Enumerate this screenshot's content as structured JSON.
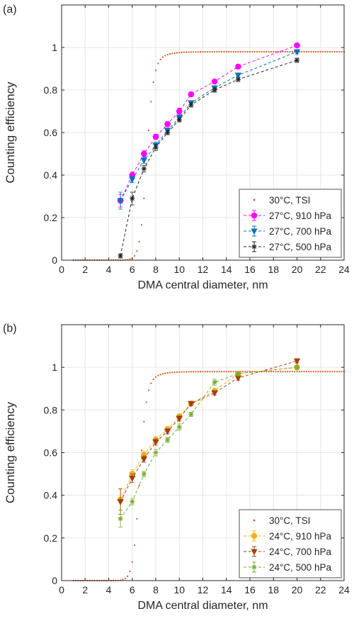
{
  "chart_data": [
    {
      "type": "scatter",
      "panel_label": "(a)",
      "xlabel": "DMA central diameter, nm",
      "ylabel": "Counting efficiency",
      "xlim": [
        0,
        24
      ],
      "ylim": [
        0,
        1.2
      ],
      "xticks": [
        "0",
        "2",
        "4",
        "6",
        "8",
        "10",
        "12",
        "14",
        "16",
        "18",
        "20",
        "22",
        "24"
      ],
      "yticks": [
        "0",
        "0.2",
        "0.4",
        "0.6",
        "0.8",
        "1"
      ],
      "grid": true,
      "legend_position": "bottom-right",
      "reference": {
        "name": "30°C, TSI",
        "color": "#d95319",
        "d50": 7.2,
        "k": 1.35,
        "plateau": 0.98,
        "xstart": 1,
        "xend": 24,
        "step": 0.2
      },
      "series": [
        {
          "name": "27°C, 910 hPa",
          "color": "#ff00ff",
          "marker": "circle",
          "x": [
            5,
            6,
            7,
            8,
            9,
            10,
            11,
            13,
            15,
            20
          ],
          "y": [
            0.28,
            0.4,
            0.5,
            0.58,
            0.64,
            0.7,
            0.78,
            0.84,
            0.91,
            1.01
          ],
          "err": [
            0.03,
            0.015,
            0.015,
            0.012,
            0.012,
            0.015,
            0.01,
            0.01,
            0.01,
            0.01
          ]
        },
        {
          "name": "27°C, 700 hPa",
          "color": "#0072bd",
          "marker": "triangle-down",
          "x": [
            5,
            6,
            7,
            8,
            9,
            10,
            11,
            13,
            15,
            20
          ],
          "y": [
            0.28,
            0.38,
            0.47,
            0.54,
            0.61,
            0.67,
            0.74,
            0.81,
            0.87,
            0.98
          ],
          "err": [
            0.04,
            0.015,
            0.015,
            0.015,
            0.012,
            0.012,
            0.01,
            0.01,
            0.01,
            0.01
          ]
        },
        {
          "name": "27°C, 500 hPa",
          "color": "#262626",
          "marker": "star",
          "x": [
            5,
            6,
            7,
            8,
            9,
            10,
            11,
            13,
            15,
            20
          ],
          "y": [
            0.02,
            0.29,
            0.43,
            0.53,
            0.6,
            0.66,
            0.73,
            0.8,
            0.85,
            0.94
          ],
          "err": [
            0.01,
            0.03,
            0.015,
            0.015,
            0.01,
            0.01,
            0.01,
            0.01,
            0.01,
            0.01
          ]
        }
      ]
    },
    {
      "type": "scatter",
      "panel_label": "(b)",
      "xlabel": "DMA central diameter, nm",
      "ylabel": "Counting efficiency",
      "xlim": [
        0,
        24
      ],
      "ylim": [
        0,
        1.2
      ],
      "xticks": [
        "0",
        "2",
        "4",
        "6",
        "8",
        "10",
        "12",
        "14",
        "16",
        "18",
        "20",
        "22",
        "24"
      ],
      "yticks": [
        "0",
        "0.2",
        "0.4",
        "0.6",
        "0.8",
        "1"
      ],
      "grid": true,
      "legend_position": "bottom-right",
      "reference": {
        "name": "30°C, TSI",
        "color": "#d95319",
        "d50": 6.6,
        "k": 1.35,
        "plateau": 0.98,
        "xstart": 1,
        "xend": 24,
        "step": 0.2
      },
      "series": [
        {
          "name": "24°C, 910 hPa",
          "color": "#edb120",
          "marker": "circle",
          "x": [
            5,
            6,
            7,
            8,
            9,
            10,
            11,
            13,
            15,
            20
          ],
          "y": [
            0.38,
            0.5,
            0.59,
            0.66,
            0.71,
            0.77,
            0.83,
            0.89,
            0.97,
            1.0
          ],
          "err": [
            0.05,
            0.02,
            0.015,
            0.015,
            0.012,
            0.012,
            0.01,
            0.01,
            0.01,
            0.01
          ]
        },
        {
          "name": "24°C, 700 hPa",
          "color": "#a2400c",
          "marker": "triangle-down",
          "x": [
            5,
            6,
            7,
            8,
            9,
            10,
            11,
            13,
            15,
            20
          ],
          "y": [
            0.37,
            0.48,
            0.57,
            0.65,
            0.7,
            0.76,
            0.83,
            0.88,
            0.95,
            1.03
          ],
          "err": [
            0.06,
            0.02,
            0.015,
            0.015,
            0.012,
            0.012,
            0.01,
            0.01,
            0.01,
            0.01
          ]
        },
        {
          "name": "24°C, 500 hPa",
          "color": "#77ac30",
          "marker": "star",
          "x": [
            5,
            6,
            7,
            8,
            9,
            10,
            11,
            13,
            15,
            20
          ],
          "y": [
            0.29,
            0.37,
            0.5,
            0.6,
            0.66,
            0.72,
            0.78,
            0.93,
            0.97,
            1.0
          ],
          "err": [
            0.04,
            0.015,
            0.012,
            0.015,
            0.012,
            0.015,
            0.01,
            0.015,
            0.01,
            0.01
          ]
        }
      ]
    }
  ]
}
